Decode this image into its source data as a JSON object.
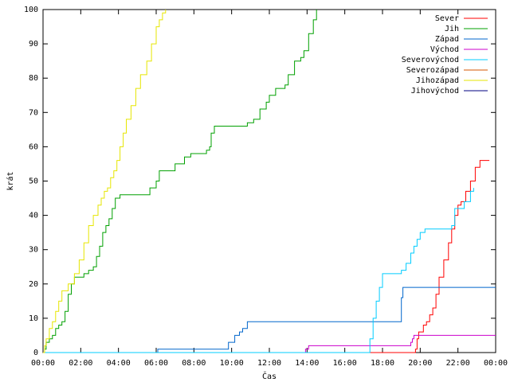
{
  "chart_data": {
    "type": "line",
    "xlabel": "Čas",
    "ylabel": "krát",
    "xlim": [
      0,
      1440
    ],
    "ylim": [
      0,
      100
    ],
    "x_ticks": [
      {
        "value": 0,
        "label": "00:00"
      },
      {
        "value": 120,
        "label": "02:00"
      },
      {
        "value": 240,
        "label": "04:00"
      },
      {
        "value": 360,
        "label": "06:00"
      },
      {
        "value": 480,
        "label": "08:00"
      },
      {
        "value": 600,
        "label": "10:00"
      },
      {
        "value": 720,
        "label": "12:00"
      },
      {
        "value": 840,
        "label": "14:00"
      },
      {
        "value": 960,
        "label": "16:00"
      },
      {
        "value": 1080,
        "label": "18:00"
      },
      {
        "value": 1200,
        "label": "20:00"
      },
      {
        "value": 1320,
        "label": "22:00"
      },
      {
        "value": 1440,
        "label": "00:00"
      }
    ],
    "y_ticks": [
      0,
      10,
      20,
      30,
      40,
      50,
      60,
      70,
      80,
      90,
      100
    ],
    "grid": false,
    "legend_position": "top-right",
    "series": [
      {
        "name": "Sever",
        "color": "#ff0000",
        "points": [
          [
            0,
            0
          ],
          [
            1180,
            0
          ],
          [
            1185,
            1
          ],
          [
            1190,
            4
          ],
          [
            1195,
            6
          ],
          [
            1200,
            6
          ],
          [
            1210,
            8
          ],
          [
            1220,
            9
          ],
          [
            1230,
            11
          ],
          [
            1240,
            13
          ],
          [
            1250,
            17
          ],
          [
            1260,
            22
          ],
          [
            1275,
            27
          ],
          [
            1290,
            32
          ],
          [
            1300,
            36
          ],
          [
            1310,
            40
          ],
          [
            1320,
            43
          ],
          [
            1330,
            44
          ],
          [
            1345,
            47
          ],
          [
            1360,
            50
          ],
          [
            1375,
            54
          ],
          [
            1390,
            56
          ],
          [
            1410,
            56
          ],
          [
            1420,
            56
          ]
        ]
      },
      {
        "name": "Jih",
        "color": "#00a000",
        "points": [
          [
            0,
            0
          ],
          [
            5,
            1
          ],
          [
            10,
            3
          ],
          [
            20,
            4
          ],
          [
            30,
            5
          ],
          [
            40,
            7
          ],
          [
            50,
            8
          ],
          [
            60,
            9
          ],
          [
            70,
            12
          ],
          [
            80,
            17
          ],
          [
            90,
            20
          ],
          [
            100,
            22
          ],
          [
            130,
            23
          ],
          [
            145,
            24
          ],
          [
            160,
            25
          ],
          [
            170,
            28
          ],
          [
            180,
            31
          ],
          [
            190,
            35
          ],
          [
            200,
            37
          ],
          [
            210,
            39
          ],
          [
            220,
            42
          ],
          [
            230,
            45
          ],
          [
            245,
            46
          ],
          [
            300,
            46
          ],
          [
            340,
            48
          ],
          [
            360,
            50
          ],
          [
            370,
            53
          ],
          [
            400,
            53
          ],
          [
            420,
            55
          ],
          [
            450,
            57
          ],
          [
            470,
            58
          ],
          [
            510,
            58
          ],
          [
            520,
            59
          ],
          [
            530,
            60
          ],
          [
            535,
            64
          ],
          [
            545,
            66
          ],
          [
            600,
            66
          ],
          [
            620,
            66
          ],
          [
            650,
            67
          ],
          [
            670,
            68
          ],
          [
            690,
            71
          ],
          [
            710,
            73
          ],
          [
            720,
            75
          ],
          [
            740,
            77
          ],
          [
            770,
            78
          ],
          [
            780,
            81
          ],
          [
            800,
            85
          ],
          [
            820,
            86
          ],
          [
            830,
            88
          ],
          [
            845,
            93
          ],
          [
            860,
            97
          ],
          [
            870,
            100
          ]
        ]
      },
      {
        "name": "Západ",
        "color": "#0066cc",
        "points": [
          [
            0,
            0
          ],
          [
            360,
            0
          ],
          [
            365,
            1
          ],
          [
            585,
            1
          ],
          [
            590,
            3
          ],
          [
            610,
            5
          ],
          [
            625,
            6
          ],
          [
            635,
            7
          ],
          [
            650,
            9
          ],
          [
            845,
            9
          ],
          [
            960,
            9
          ],
          [
            1130,
            9
          ],
          [
            1140,
            16
          ],
          [
            1145,
            19
          ],
          [
            1440,
            19
          ]
        ]
      },
      {
        "name": "Východ",
        "color": "#cc00cc",
        "points": [
          [
            0,
            0
          ],
          [
            830,
            0
          ],
          [
            835,
            1
          ],
          [
            845,
            2
          ],
          [
            1150,
            2
          ],
          [
            1170,
            3
          ],
          [
            1175,
            4
          ],
          [
            1180,
            5
          ],
          [
            1440,
            5
          ]
        ]
      },
      {
        "name": "Severovýchod",
        "color": "#00ccff",
        "points": [
          [
            0,
            0
          ],
          [
            1030,
            0
          ],
          [
            1040,
            4
          ],
          [
            1050,
            10
          ],
          [
            1060,
            15
          ],
          [
            1070,
            19
          ],
          [
            1080,
            23
          ],
          [
            1110,
            23
          ],
          [
            1140,
            24
          ],
          [
            1155,
            26
          ],
          [
            1170,
            29
          ],
          [
            1180,
            31
          ],
          [
            1190,
            33
          ],
          [
            1200,
            35
          ],
          [
            1215,
            36
          ],
          [
            1280,
            36
          ],
          [
            1300,
            37
          ],
          [
            1310,
            42
          ],
          [
            1320,
            42
          ],
          [
            1340,
            44
          ],
          [
            1360,
            47
          ],
          [
            1370,
            48
          ]
        ]
      },
      {
        "name": "Severozápad",
        "color": "#d45500",
        "points": []
      },
      {
        "name": "Jihozápad",
        "color": "#e6e600",
        "points": [
          [
            0,
            0
          ],
          [
            5,
            2
          ],
          [
            10,
            4
          ],
          [
            20,
            7
          ],
          [
            30,
            9
          ],
          [
            40,
            12
          ],
          [
            50,
            15
          ],
          [
            60,
            18
          ],
          [
            80,
            20
          ],
          [
            100,
            23
          ],
          [
            115,
            27
          ],
          [
            130,
            32
          ],
          [
            145,
            37
          ],
          [
            160,
            40
          ],
          [
            175,
            43
          ],
          [
            185,
            45
          ],
          [
            195,
            47
          ],
          [
            205,
            48
          ],
          [
            215,
            51
          ],
          [
            225,
            53
          ],
          [
            235,
            56
          ],
          [
            245,
            60
          ],
          [
            255,
            64
          ],
          [
            265,
            68
          ],
          [
            280,
            72
          ],
          [
            295,
            77
          ],
          [
            310,
            81
          ],
          [
            330,
            85
          ],
          [
            345,
            90
          ],
          [
            360,
            95
          ],
          [
            370,
            97
          ],
          [
            380,
            99
          ],
          [
            390,
            100
          ]
        ]
      },
      {
        "name": "Jihovýchod",
        "color": "#000080",
        "points": []
      }
    ]
  }
}
